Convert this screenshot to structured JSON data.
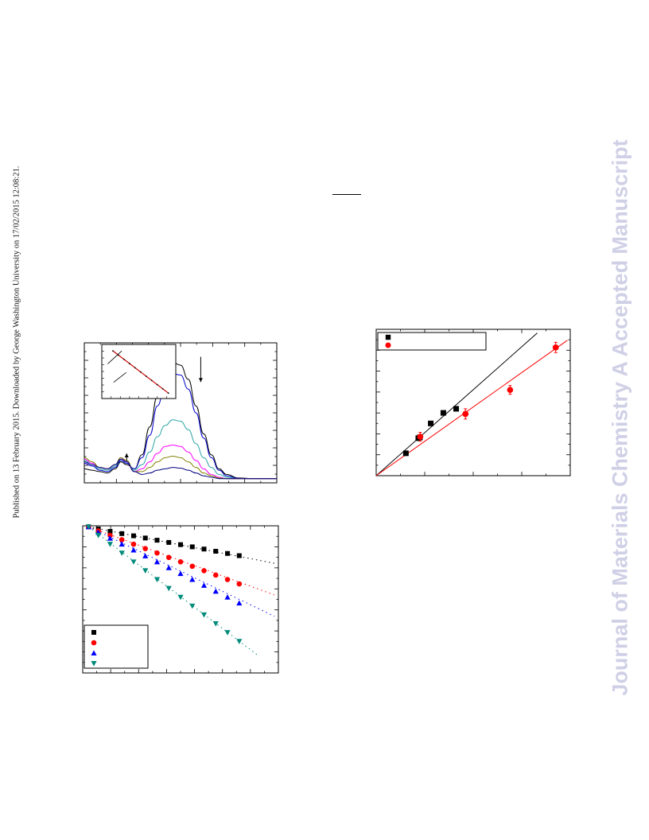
{
  "page": {
    "side_note": "Published on 13 February 2015. Downloaded by George Washington University on 17/02/2015 12:08:21.",
    "watermark": "Journal of Materials Chemistry A Accepted Manuscript",
    "colors": {
      "watermark": "#cfd0e6"
    }
  },
  "chart_data": [
    {
      "id": "uv-vis-spectra",
      "type": "line",
      "title": "",
      "xlabel": "",
      "ylabel": "",
      "xlim": [
        0,
        1
      ],
      "ylim": [
        0,
        1
      ],
      "grid": false,
      "note": "no axis labels or tick labels are printed; values are normalized to the frame",
      "series": [
        {
          "color": "#000000",
          "x": [
            0,
            0.04,
            0.08,
            0.12,
            0.16,
            0.19,
            0.22,
            0.26,
            0.3,
            0.34,
            0.38,
            0.42,
            0.46,
            0.5,
            0.54,
            0.58,
            0.62,
            0.66,
            0.7,
            0.74,
            0.8,
            0.88,
            1.0
          ],
          "y": [
            0.1,
            0.09,
            0.08,
            0.07,
            0.1,
            0.15,
            0.13,
            0.1,
            0.2,
            0.4,
            0.62,
            0.78,
            0.86,
            0.84,
            0.74,
            0.55,
            0.35,
            0.2,
            0.1,
            0.06,
            0.035,
            0.03,
            0.03
          ]
        },
        {
          "color": "#0000cc",
          "x": [
            0,
            0.04,
            0.08,
            0.12,
            0.16,
            0.19,
            0.22,
            0.26,
            0.3,
            0.34,
            0.38,
            0.42,
            0.46,
            0.5,
            0.54,
            0.58,
            0.62,
            0.66,
            0.7,
            0.74,
            0.8,
            0.88,
            1.0
          ],
          "y": [
            0.14,
            0.12,
            0.09,
            0.08,
            0.11,
            0.16,
            0.14,
            0.1,
            0.18,
            0.34,
            0.55,
            0.7,
            0.78,
            0.77,
            0.67,
            0.5,
            0.32,
            0.18,
            0.09,
            0.05,
            0.032,
            0.03,
            0.03
          ]
        },
        {
          "color": "#2aa3a8",
          "x": [
            0,
            0.04,
            0.08,
            0.12,
            0.16,
            0.19,
            0.22,
            0.26,
            0.3,
            0.34,
            0.38,
            0.42,
            0.46,
            0.5,
            0.54,
            0.58,
            0.62,
            0.66,
            0.7,
            0.74,
            0.8,
            0.88,
            1.0
          ],
          "y": [
            0.16,
            0.13,
            0.1,
            0.09,
            0.12,
            0.17,
            0.15,
            0.09,
            0.13,
            0.22,
            0.33,
            0.41,
            0.45,
            0.44,
            0.38,
            0.28,
            0.18,
            0.11,
            0.06,
            0.04,
            0.03,
            0.03,
            0.03
          ]
        },
        {
          "color": "#ff00ff",
          "x": [
            0,
            0.04,
            0.08,
            0.12,
            0.16,
            0.19,
            0.22,
            0.26,
            0.3,
            0.34,
            0.38,
            0.42,
            0.46,
            0.5,
            0.54,
            0.58,
            0.62,
            0.66,
            0.7,
            0.74,
            0.8,
            0.88,
            1.0
          ],
          "y": [
            0.17,
            0.14,
            0.11,
            0.1,
            0.13,
            0.18,
            0.15,
            0.08,
            0.1,
            0.15,
            0.21,
            0.26,
            0.27,
            0.26,
            0.22,
            0.16,
            0.1,
            0.06,
            0.04,
            0.03,
            0.03,
            0.03,
            0.03
          ]
        },
        {
          "color": "#808000",
          "x": [
            0,
            0.04,
            0.08,
            0.12,
            0.16,
            0.19,
            0.22,
            0.26,
            0.3,
            0.34,
            0.38,
            0.42,
            0.46,
            0.5,
            0.54,
            0.58,
            0.62,
            0.66,
            0.7,
            0.74,
            0.8,
            0.88,
            1.0
          ],
          "y": [
            0.18,
            0.15,
            0.11,
            0.1,
            0.13,
            0.18,
            0.16,
            0.08,
            0.08,
            0.11,
            0.15,
            0.18,
            0.19,
            0.18,
            0.15,
            0.11,
            0.07,
            0.05,
            0.035,
            0.03,
            0.03,
            0.03,
            0.03
          ]
        },
        {
          "color": "#000080",
          "x": [
            0,
            0.04,
            0.08,
            0.12,
            0.16,
            0.19,
            0.22,
            0.26,
            0.3,
            0.34,
            0.38,
            0.42,
            0.46,
            0.5,
            0.54,
            0.58,
            0.62,
            0.66,
            0.7,
            0.74,
            0.8,
            0.88,
            1.0
          ],
          "y": [
            0.15,
            0.13,
            0.11,
            0.1,
            0.13,
            0.17,
            0.15,
            0.08,
            0.06,
            0.07,
            0.09,
            0.1,
            0.11,
            0.105,
            0.09,
            0.07,
            0.05,
            0.04,
            0.03,
            0.03,
            0.03,
            0.03,
            0.03
          ]
        }
      ],
      "arrows": [
        {
          "x": 0.22,
          "y_from": 0.155,
          "y_to": 0.21,
          "direction": "up"
        },
        {
          "x": 0.605,
          "y_from": 0.9,
          "y_to": 0.72,
          "direction": "down"
        }
      ],
      "inset": {
        "line": {
          "color": "#cc0000",
          "x": [
            0.15,
            0.9
          ],
          "y": [
            0.88,
            0.1
          ]
        },
        "pointers": [
          {
            "x1": 0.08,
            "y1": 0.64,
            "x2": 0.27,
            "y2": 0.88
          },
          {
            "x1": 0.16,
            "y1": 0.3,
            "x2": 0.33,
            "y2": 0.48
          }
        ]
      }
    },
    {
      "id": "kinetics-plot",
      "type": "scatter",
      "title": "",
      "xlabel": "",
      "ylabel": "",
      "xlim": [
        0,
        1
      ],
      "ylim": [
        0,
        1
      ],
      "grid": false,
      "legend": {
        "placement": "bottom-left",
        "entries": 4
      },
      "series": [
        {
          "color": "#000000",
          "marker": "square",
          "x": [
            0.03,
            0.08,
            0.14,
            0.2,
            0.26,
            0.32,
            0.38,
            0.44,
            0.5,
            0.56,
            0.62,
            0.68,
            0.74,
            0.8
          ],
          "y": [
            0.993,
            0.978,
            0.962,
            0.947,
            0.932,
            0.917,
            0.902,
            0.887,
            0.872,
            0.857,
            0.842,
            0.827,
            0.812,
            0.797
          ],
          "fit": {
            "color": "#000000",
            "x": [
              0.03,
              0.98
            ],
            "y": [
              0.993,
              0.745
            ]
          }
        },
        {
          "color": "#ff0000",
          "marker": "circle",
          "x": [
            0.03,
            0.08,
            0.14,
            0.2,
            0.26,
            0.32,
            0.38,
            0.44,
            0.5,
            0.56,
            0.62,
            0.68,
            0.74,
            0.8
          ],
          "y": [
            0.993,
            0.965,
            0.935,
            0.905,
            0.875,
            0.845,
            0.815,
            0.785,
            0.755,
            0.725,
            0.695,
            0.665,
            0.635,
            0.605
          ],
          "fit": {
            "color": "#ff0000",
            "x": [
              0.03,
              0.98
            ],
            "y": [
              0.993,
              0.53
            ]
          }
        },
        {
          "color": "#0000ff",
          "marker": "triangle-up",
          "x": [
            0.03,
            0.08,
            0.14,
            0.2,
            0.26,
            0.32,
            0.38,
            0.44,
            0.5,
            0.56,
            0.62,
            0.68,
            0.74,
            0.8
          ],
          "y": [
            0.993,
            0.955,
            0.915,
            0.875,
            0.835,
            0.795,
            0.755,
            0.715,
            0.675,
            0.635,
            0.595,
            0.555,
            0.515,
            0.475
          ],
          "fit": {
            "color": "#0000ff",
            "x": [
              0.03,
              0.98
            ],
            "y": [
              0.993,
              0.385
            ]
          }
        },
        {
          "color": "#008b7a",
          "marker": "triangle-down",
          "x": [
            0.03,
            0.08,
            0.14,
            0.2,
            0.26,
            0.32,
            0.38,
            0.44,
            0.5,
            0.56,
            0.62,
            0.68,
            0.74,
            0.8
          ],
          "y": [
            0.993,
            0.935,
            0.875,
            0.815,
            0.755,
            0.695,
            0.635,
            0.575,
            0.515,
            0.455,
            0.395,
            0.335,
            0.275,
            0.215
          ],
          "fit": {
            "color": "#008b7a",
            "x": [
              0.03,
              0.9
            ],
            "y": [
              0.993,
              0.115
            ]
          }
        }
      ]
    },
    {
      "id": "linear-fit-plot",
      "type": "scatter",
      "title": "",
      "xlabel": "",
      "ylabel": "",
      "xlim": [
        0,
        1
      ],
      "ylim": [
        0,
        1
      ],
      "grid": false,
      "legend": {
        "placement": "top-left",
        "entries": 2
      },
      "series": [
        {
          "color": "#000000",
          "marker": "square",
          "x": [
            0.153,
            0.217,
            0.225,
            0.281,
            0.346,
            0.412
          ],
          "y": [
            0.153,
            0.256,
            0.262,
            0.357,
            0.429,
            0.457
          ],
          "yerr": [
            0.012,
            0.012,
            0.012,
            0.012,
            0.012,
            0.012
          ],
          "fit": {
            "color": "#000000",
            "x": [
              0.0,
              0.83
            ],
            "y": [
              0.0,
              0.975
            ]
          }
        },
        {
          "color": "#ff0000",
          "marker": "circle",
          "x": [
            0.227,
            0.46,
            0.69,
            0.925
          ],
          "y": [
            0.266,
            0.422,
            0.586,
            0.876
          ],
          "yerr": [
            0.03,
            0.035,
            0.03,
            0.035
          ],
          "fit": {
            "color": "#ff0000",
            "x": [
              0.0,
              0.985
            ],
            "y": [
              0.0,
              0.925
            ]
          }
        }
      ]
    }
  ]
}
